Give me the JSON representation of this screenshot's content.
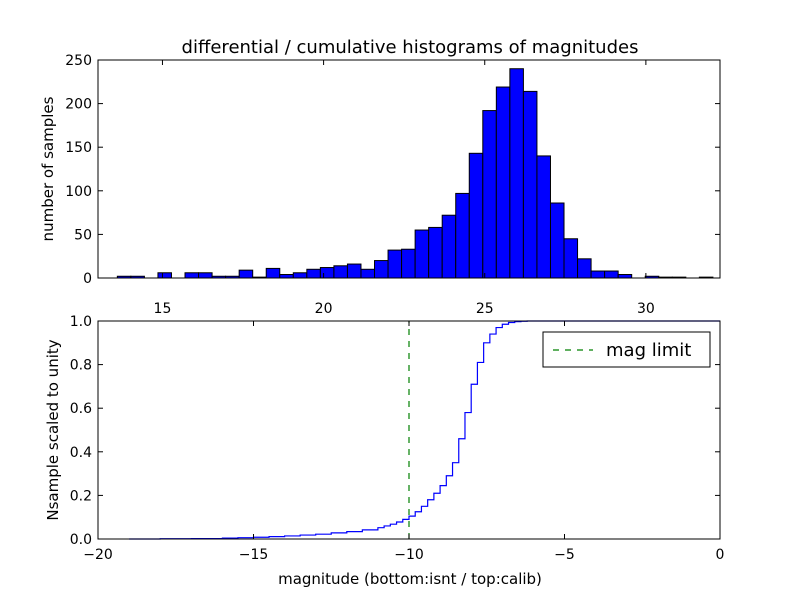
{
  "chart_data": [
    {
      "type": "bar",
      "title": "differential / cumulative histograms of magnitudes",
      "xlabel": "",
      "ylabel": "number of samples",
      "xlim": [
        13.0,
        32.3
      ],
      "ylim": [
        0,
        250
      ],
      "xticks": [
        15,
        20,
        25,
        30
      ],
      "yticks": [
        0,
        50,
        100,
        150,
        200,
        250
      ],
      "bar_color": "#0000ff",
      "edge_color": "#000000",
      "bin_width": 0.42,
      "x_left": [
        13.6,
        14.02,
        14.44,
        14.86,
        15.28,
        15.7,
        16.12,
        16.54,
        16.96,
        17.38,
        17.8,
        18.22,
        18.64,
        19.06,
        19.48,
        19.9,
        20.32,
        20.74,
        21.16,
        21.58,
        22.0,
        22.42,
        22.84,
        23.26,
        23.68,
        24.1,
        24.52,
        24.94,
        25.36,
        25.78,
        26.2,
        26.62,
        27.04,
        27.46,
        27.88,
        28.3,
        28.72,
        29.14,
        29.56,
        29.98,
        30.4,
        30.82,
        31.24,
        31.66
      ],
      "values": [
        2,
        2,
        0,
        6,
        0,
        6,
        6,
        2,
        2,
        9,
        1,
        11,
        4,
        6,
        10,
        12,
        14,
        16,
        10,
        20,
        32,
        33,
        55,
        58,
        72,
        97,
        143,
        192,
        219,
        240,
        214,
        140,
        86,
        45,
        22,
        8,
        8,
        4,
        0,
        2,
        1,
        1,
        0,
        1
      ]
    },
    {
      "type": "line",
      "title": "",
      "xlabel": "magnitude (bottom:isnt / top:calib)",
      "ylabel": "Nsample scaled to unity",
      "xlim": [
        -20,
        0
      ],
      "ylim": [
        0,
        1.0
      ],
      "xticks": [
        -20,
        -15,
        -10,
        -5,
        0
      ],
      "xtick_labels": [
        "−20",
        "−15",
        "−10",
        "−5",
        "0"
      ],
      "yticks": [
        0.0,
        0.2,
        0.4,
        0.6,
        0.8,
        1.0
      ],
      "ytick_labels": [
        "0.0",
        "0.2",
        "0.4",
        "0.6",
        "0.8",
        "1.0"
      ],
      "series": [
        {
          "color": "#0000ff",
          "drawstyle": "steps",
          "x": [
            -19.0,
            -18.0,
            -17.0,
            -16.0,
            -15.5,
            -15.0,
            -14.5,
            -14.0,
            -13.5,
            -13.0,
            -12.5,
            -12.0,
            -11.5,
            -11.0,
            -10.8,
            -10.6,
            -10.4,
            -10.2,
            -10.0,
            -9.8,
            -9.6,
            -9.4,
            -9.2,
            -9.0,
            -8.8,
            -8.6,
            -8.4,
            -8.2,
            -8.0,
            -7.8,
            -7.6,
            -7.4,
            -7.2,
            -7.0,
            -6.8,
            -6.6,
            -6.4,
            -6.2,
            -6.0,
            0.0
          ],
          "y": [
            0.0,
            0.001,
            0.002,
            0.004,
            0.006,
            0.008,
            0.011,
            0.014,
            0.018,
            0.022,
            0.028,
            0.034,
            0.042,
            0.052,
            0.06,
            0.068,
            0.078,
            0.09,
            0.105,
            0.125,
            0.15,
            0.18,
            0.21,
            0.245,
            0.29,
            0.35,
            0.46,
            0.58,
            0.71,
            0.81,
            0.9,
            0.94,
            0.97,
            0.985,
            0.993,
            0.997,
            0.999,
            1.0,
            1.0,
            1.0
          ]
        },
        {
          "name": "mag limit",
          "color": "#008000",
          "linestyle": "dashed",
          "x": [
            -10.0,
            -10.0
          ],
          "y": [
            0.0,
            1.0
          ]
        }
      ],
      "legend_placement": "top-right",
      "vline_at": -10.0
    }
  ]
}
